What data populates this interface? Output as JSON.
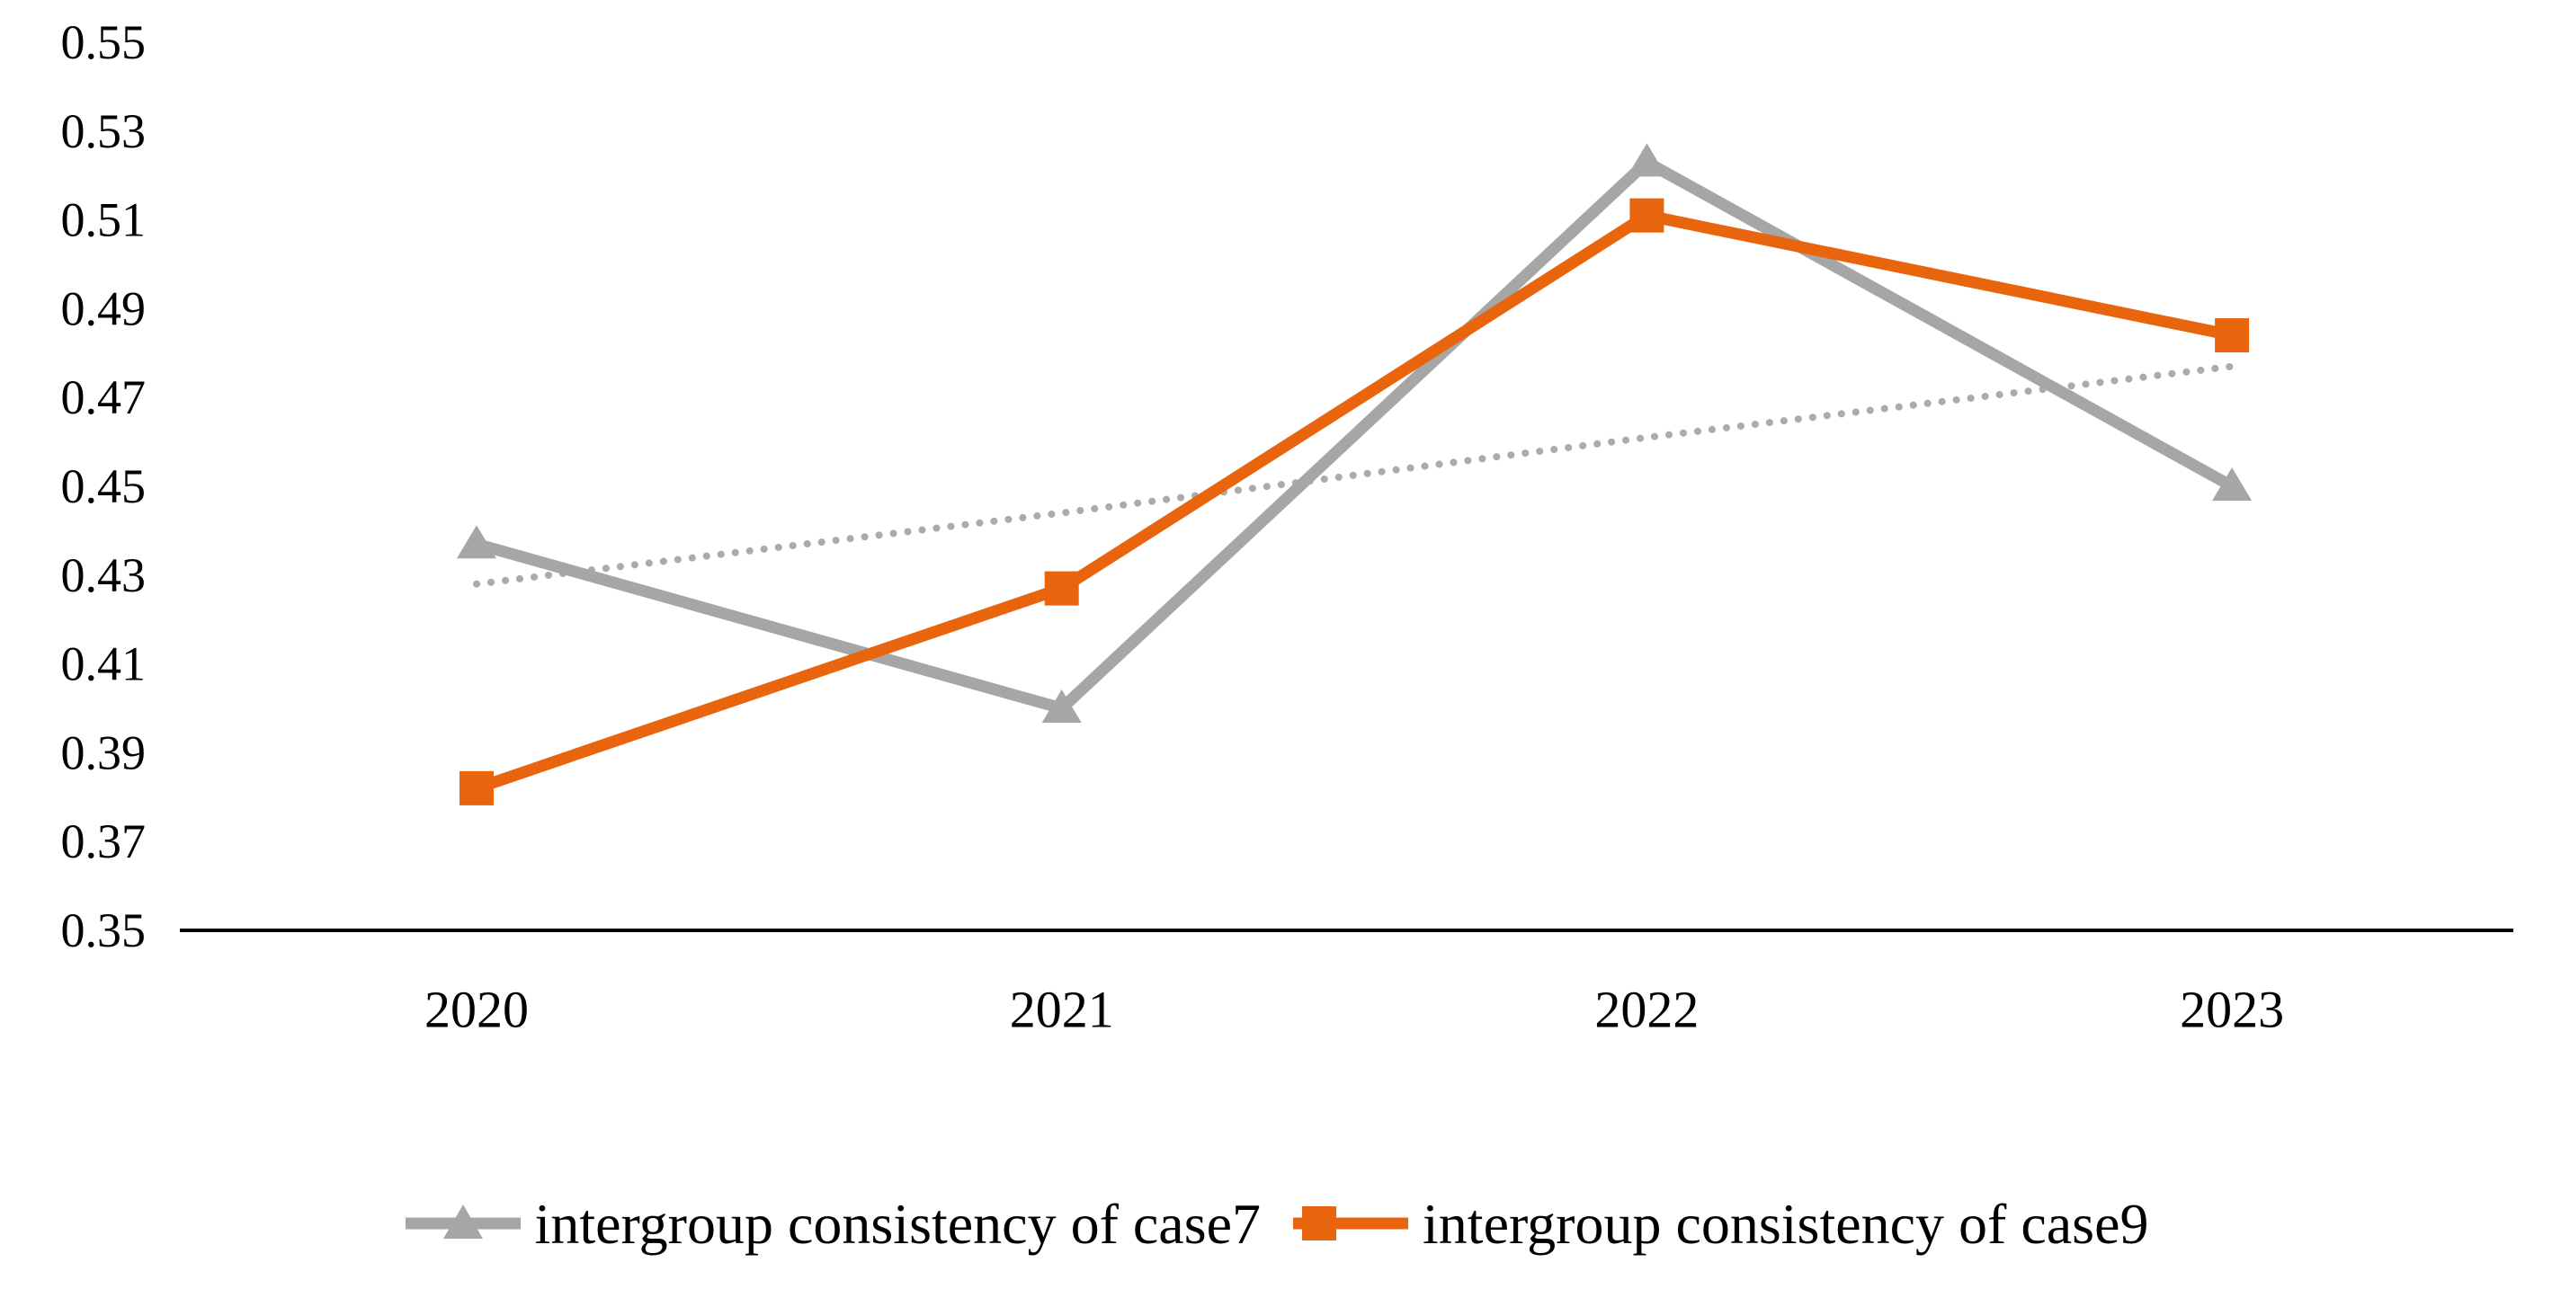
{
  "legend": {
    "case7": "intergroup consistency of case7",
    "case9": "intergroup consistency of case9"
  },
  "colors": {
    "axis": "#000000",
    "case7": "#A6A6A6",
    "case9": "#E8650E",
    "trend": "#ABABAB"
  },
  "chart_data": {
    "type": "line",
    "categories": [
      "2020",
      "2021",
      "2022",
      "2023"
    ],
    "series": [
      {
        "name": "intergroup consistency of case7",
        "color": "#A6A6A6",
        "marker": "triangle",
        "values": [
          0.437,
          0.4,
          0.523,
          0.45
        ]
      },
      {
        "name": "intergroup consistency of case9",
        "color": "#E8650E",
        "marker": "square",
        "values": [
          0.382,
          0.427,
          0.511,
          0.484
        ]
      }
    ],
    "trendline": {
      "of_series": "intergroup consistency of case7",
      "style": "dotted",
      "color": "#ABABAB",
      "values": [
        0.428,
        0.444,
        0.461,
        0.477
      ]
    },
    "yticks": [
      "0.55",
      "0.53",
      "0.51",
      "0.49",
      "0.47",
      "0.45",
      "0.43",
      "0.41",
      "0.39",
      "0.37",
      "0.35"
    ],
    "ylim": [
      0.35,
      0.55
    ],
    "grid": false,
    "legend_position": "bottom"
  }
}
